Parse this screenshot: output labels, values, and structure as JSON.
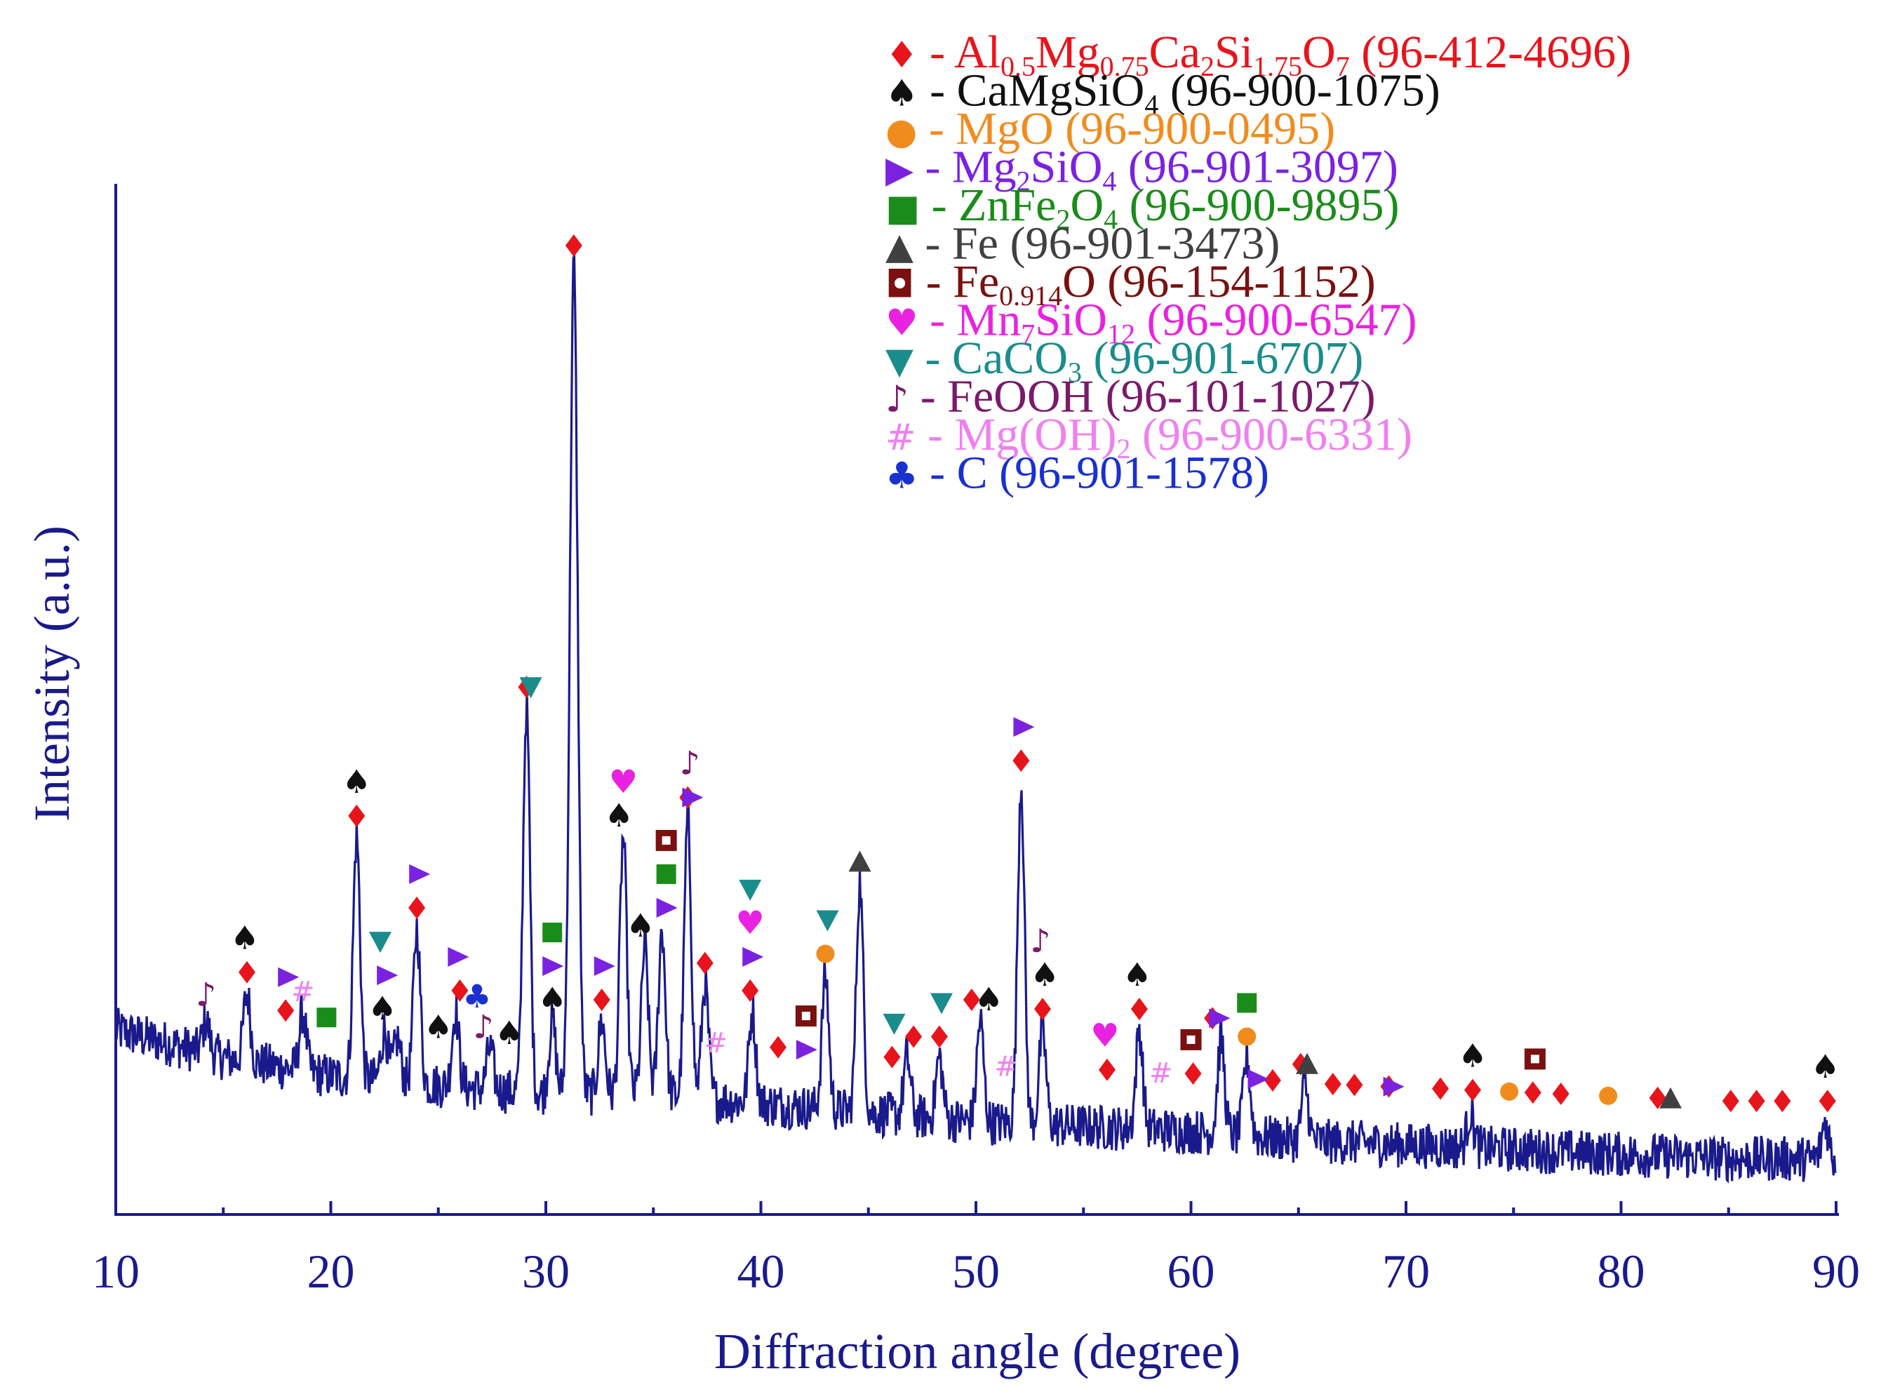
{
  "chart_data": {
    "type": "line",
    "title": "",
    "xlabel": "Diffraction angle (degree)",
    "ylabel": "Intensity (a.u.)",
    "xlim": [
      10,
      90
    ],
    "ylim": [
      0,
      100
    ],
    "x_ticks": [
      "10",
      "20",
      "30",
      "40",
      "50",
      "60",
      "70",
      "80",
      "90"
    ],
    "y_ticks": [],
    "grid": false,
    "line_color": "#1a1a8c",
    "baseline": [
      [
        10,
        17
      ],
      [
        15,
        14
      ],
      [
        20,
        12
      ],
      [
        25,
        11
      ],
      [
        30,
        10
      ],
      [
        35,
        10
      ],
      [
        40,
        9
      ],
      [
        45,
        8
      ],
      [
        50,
        7
      ],
      [
        55,
        6.5
      ],
      [
        60,
        6
      ],
      [
        65,
        5
      ],
      [
        70,
        4.5
      ],
      [
        75,
        4
      ],
      [
        80,
        3.5
      ],
      [
        85,
        3
      ],
      [
        90,
        3
      ]
    ],
    "peaks": [
      {
        "x": 14.2,
        "y": 18
      },
      {
        "x": 16.1,
        "y": 21
      },
      {
        "x": 18.7,
        "y": 19
      },
      {
        "x": 21.2,
        "y": 38
      },
      {
        "x": 22.5,
        "y": 17
      },
      {
        "x": 23.1,
        "y": 16
      },
      {
        "x": 24.0,
        "y": 28
      },
      {
        "x": 25.8,
        "y": 19
      },
      {
        "x": 27.4,
        "y": 15
      },
      {
        "x": 29.1,
        "y": 52
      },
      {
        "x": 30.3,
        "y": 18
      },
      {
        "x": 31.3,
        "y": 100
      },
      {
        "x": 32.6,
        "y": 18
      },
      {
        "x": 33.6,
        "y": 38
      },
      {
        "x": 34.6,
        "y": 26
      },
      {
        "x": 35.4,
        "y": 28
      },
      {
        "x": 36.6,
        "y": 40
      },
      {
        "x": 37.4,
        "y": 22
      },
      {
        "x": 39.6,
        "y": 19
      },
      {
        "x": 43.0,
        "y": 23
      },
      {
        "x": 44.6,
        "y": 33
      },
      {
        "x": 46.8,
        "y": 14
      },
      {
        "x": 48.3,
        "y": 14
      },
      {
        "x": 50.2,
        "y": 18
      },
      {
        "x": 52.1,
        "y": 44
      },
      {
        "x": 53.1,
        "y": 17
      },
      {
        "x": 57.6,
        "y": 17
      },
      {
        "x": 61.4,
        "y": 16
      },
      {
        "x": 62.6,
        "y": 14
      },
      {
        "x": 65.3,
        "y": 11
      },
      {
        "x": 73.0,
        "y": 8
      },
      {
        "x": 89.5,
        "y": 7
      }
    ],
    "phase_markers": [
      {
        "phase": "Al0.5Mg0.75Ca2Si1.75O7",
        "symbol": "diamond",
        "positions": [
          16.1,
          17.9,
          21.2,
          24.0,
          26.0,
          29.1,
          31.3,
          32.6,
          36.6,
          37.4,
          39.5,
          40.8,
          46.1,
          47.1,
          48.3,
          49.8,
          52.1,
          53.1,
          56.1,
          57.6,
          60.1,
          61.0,
          63.8,
          65.1,
          66.6,
          67.6,
          69.2,
          71.6,
          73.1,
          75.9,
          77.2,
          81.7,
          85.1,
          86.3,
          87.5,
          89.6
        ]
      },
      {
        "phase": "CaMgSiO4",
        "symbol": "spade",
        "positions": [
          16.0,
          21.2,
          22.4,
          25.0,
          28.3,
          30.3,
          33.4,
          34.4,
          50.6,
          53.2,
          57.5,
          73.1,
          89.5
        ]
      },
      {
        "phase": "MgO",
        "symbol": "circle",
        "positions": [
          43.0,
          62.6,
          74.8,
          79.4
        ]
      },
      {
        "phase": "Mg2SiO4",
        "symbol": "triangle-right",
        "positions": [
          18.0,
          22.6,
          24.1,
          25.9,
          30.3,
          32.7,
          35.6,
          36.8,
          39.6,
          42.1,
          52.2,
          61.3,
          63.1,
          69.4
        ]
      },
      {
        "phase": "ZnFe2O4",
        "symbol": "square",
        "positions": [
          19.8,
          30.3,
          35.6,
          62.6
        ]
      },
      {
        "phase": "Fe",
        "symbol": "triangle-up",
        "positions": [
          44.6,
          65.4,
          82.3
        ]
      },
      {
        "phase": "Fe0.914O",
        "symbol": "hollow-square",
        "positions": [
          35.6,
          42.1,
          60.0,
          76.0
        ]
      },
      {
        "phase": "Mn7SiO12",
        "symbol": "heart",
        "positions": [
          33.6,
          39.5,
          56.0
        ]
      },
      {
        "phase": "CaCO3",
        "symbol": "triangle-down",
        "positions": [
          22.3,
          29.3,
          39.5,
          43.1,
          46.2,
          48.4
        ]
      },
      {
        "phase": "FeOOH",
        "symbol": "note",
        "positions": [
          14.2,
          27.1,
          36.7,
          53.0
        ]
      },
      {
        "phase": "Mg(OH)2",
        "symbol": "hash",
        "positions": [
          18.7,
          37.9,
          51.4,
          58.6
        ]
      },
      {
        "phase": "C",
        "symbol": "club",
        "positions": [
          26.8
        ]
      }
    ],
    "legend": [
      {
        "symbol": "♦",
        "text": " - Al",
        "sub1": "0.5",
        "t2": "Mg",
        "sub2": "0.75",
        "t3": "Ca",
        "sub3": "2",
        "t4": "Si",
        "sub4": "1.75",
        "t5": "O",
        "sub5": "7",
        "t6": " (96-412-4696)",
        "color": "#e8141b"
      },
      {
        "symbol": "♠",
        "text": " - CaMgSiO",
        "sub1": "4",
        "t2": " (96-900-1075)",
        "color": "#111111"
      },
      {
        "symbol": "●",
        "text": " - MgO (96-900-0495)",
        "color": "#f08c1e"
      },
      {
        "symbol": "▶",
        "text": " - Mg",
        "sub1": "2",
        "t2": "SiO",
        "sub2": "4",
        "t3": " (96-901-3097)",
        "color": "#7a22e0"
      },
      {
        "symbol": "■",
        "text": " - ZnFe",
        "sub1": "2",
        "t2": "O",
        "sub2": "4",
        "t3": " (96-900-9895)",
        "color": "#1a8c1a"
      },
      {
        "symbol": "▲",
        "text": " - Fe (96-901-3473)",
        "color": "#404040"
      },
      {
        "symbol": "◘",
        "text": " - Fe",
        "sub1": "0.914",
        "t2": "O (96-154-1152)",
        "color": "#7a1010"
      },
      {
        "symbol": "♥",
        "text": " - Mn",
        "sub1": "7",
        "t2": "SiO",
        "sub2": "12",
        "t3": " (96-900-6547)",
        "color": "#e822e0"
      },
      {
        "symbol": "▼",
        "text": " - CaCO",
        "sub1": "3",
        "t2": " (96-901-6707)",
        "color": "#1a8c8c"
      },
      {
        "symbol": "♪",
        "text": " - FeOOH (96-101-1027)",
        "color": "#7a1a6a"
      },
      {
        "symbol": "#",
        "text": " - Mg(OH)",
        "sub1": "2",
        "t2": " (96-900-6331)",
        "color": "#f080f0"
      },
      {
        "symbol": "♣",
        "text": " - C (96-901-1578)",
        "color": "#1a30d0"
      }
    ]
  },
  "colors": {
    "Al0.5Mg0.75Ca2Si1.75O7": "#e8141b",
    "CaMgSiO4": "#111111",
    "MgO": "#f08c1e",
    "Mg2SiO4": "#7a22e0",
    "ZnFe2O4": "#1a8c1a",
    "Fe": "#404040",
    "Fe0.914O": "#7a1010",
    "Mn7SiO12": "#e822e0",
    "CaCO3": "#1a8c8c",
    "FeOOH": "#7a1a6a",
    "Mg(OH)2": "#f080f0",
    "C": "#1a30d0"
  }
}
